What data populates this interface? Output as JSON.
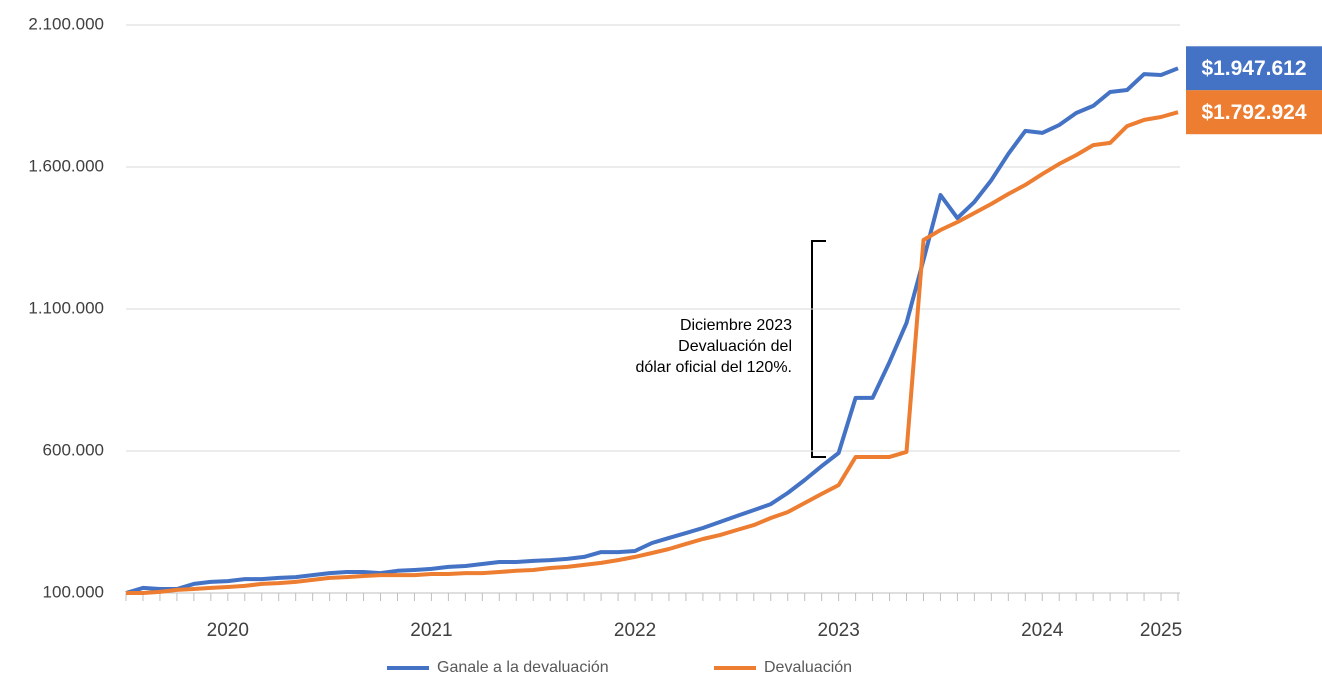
{
  "chart_data": {
    "type": "line",
    "categories": [
      null,
      null,
      null,
      null,
      null,
      null,
      "2020",
      null,
      null,
      null,
      null,
      null,
      null,
      null,
      null,
      null,
      null,
      null,
      "2021",
      null,
      null,
      null,
      null,
      null,
      null,
      null,
      null,
      null,
      null,
      null,
      "2022",
      null,
      null,
      null,
      null,
      null,
      null,
      null,
      null,
      null,
      null,
      null,
      "2023",
      null,
      null,
      null,
      null,
      null,
      null,
      null,
      null,
      null,
      null,
      null,
      "2024",
      null,
      null,
      null,
      null,
      null,
      null,
      "2025",
      null
    ],
    "series": [
      {
        "name": "Ganale a la devaluación",
        "color": "#4472c4",
        "values": [
          100000,
          118000,
          114000,
          114000,
          132000,
          139000,
          142000,
          149000,
          149000,
          153000,
          156000,
          163000,
          170000,
          174000,
          174000,
          170000,
          178000,
          181000,
          185000,
          192000,
          195000,
          202000,
          209000,
          209000,
          213000,
          216000,
          220000,
          227000,
          244000,
          244000,
          248000,
          276000,
          294000,
          311000,
          329000,
          350000,
          371000,
          392000,
          413000,
          452000,
          498000,
          547000,
          593000,
          787000,
          787000,
          913000,
          1051000,
          1273000,
          1501000,
          1420000,
          1477000,
          1554000,
          1646000,
          1727000,
          1720000,
          1748000,
          1790000,
          1815000,
          1864000,
          1871000,
          1927000,
          1924000,
          1947612
        ],
        "value_labels": [
          null,
          null,
          null,
          null,
          null,
          null,
          null,
          null,
          null,
          null,
          null,
          null,
          null,
          null,
          null,
          null,
          null,
          null,
          null,
          null,
          null,
          null,
          null,
          null,
          null,
          null,
          null,
          null,
          null,
          null,
          null,
          null,
          null,
          null,
          null,
          null,
          null,
          null,
          null,
          null,
          null,
          null,
          null,
          null,
          null,
          null,
          null,
          null,
          null,
          null,
          null,
          null,
          null,
          null,
          null,
          null,
          null,
          null,
          null,
          null,
          null,
          null,
          "$1.947.612"
        ]
      },
      {
        "name": "Devaluación",
        "color": "#ed7d31",
        "values": [
          100000,
          100000,
          104000,
          111000,
          114000,
          118000,
          121000,
          125000,
          132000,
          135000,
          139000,
          146000,
          153000,
          156000,
          160000,
          163000,
          163000,
          163000,
          167000,
          167000,
          170000,
          170000,
          174000,
          178000,
          181000,
          188000,
          192000,
          199000,
          206000,
          216000,
          227000,
          241000,
          255000,
          273000,
          290000,
          304000,
          322000,
          339000,
          364000,
          385000,
          417000,
          449000,
          480000,
          579000,
          579000,
          579000,
          597000,
          1343000,
          1378000,
          1406000,
          1438000,
          1470000,
          1505000,
          1537000,
          1575000,
          1611000,
          1642000,
          1677000,
          1685000,
          1744000,
          1766000,
          1776000,
          1792924
        ],
        "value_labels": [
          null,
          null,
          null,
          null,
          null,
          null,
          null,
          null,
          null,
          null,
          null,
          null,
          null,
          null,
          null,
          null,
          null,
          null,
          null,
          null,
          null,
          null,
          null,
          null,
          null,
          null,
          null,
          null,
          null,
          null,
          null,
          null,
          null,
          null,
          null,
          null,
          null,
          null,
          null,
          null,
          null,
          null,
          null,
          null,
          null,
          null,
          null,
          null,
          null,
          null,
          null,
          null,
          null,
          null,
          null,
          null,
          null,
          null,
          null,
          null,
          null,
          null,
          "$1.792.924"
        ]
      }
    ],
    "ylim": [
      100000,
      2100000
    ],
    "yticks": [
      {
        "value": 100000,
        "label": "100.000"
      },
      {
        "value": 600000,
        "label": "600.000"
      },
      {
        "value": 1100000,
        "label": "1.100.000"
      },
      {
        "value": 1600000,
        "label": "1.600.000"
      },
      {
        "value": 2100000,
        "label": "2.100.000"
      }
    ],
    "grid": true,
    "legend": "bottom",
    "annotation": [
      "Diciembre 2023",
      "Devaluación del",
      "dólar oficial del 120%."
    ]
  }
}
